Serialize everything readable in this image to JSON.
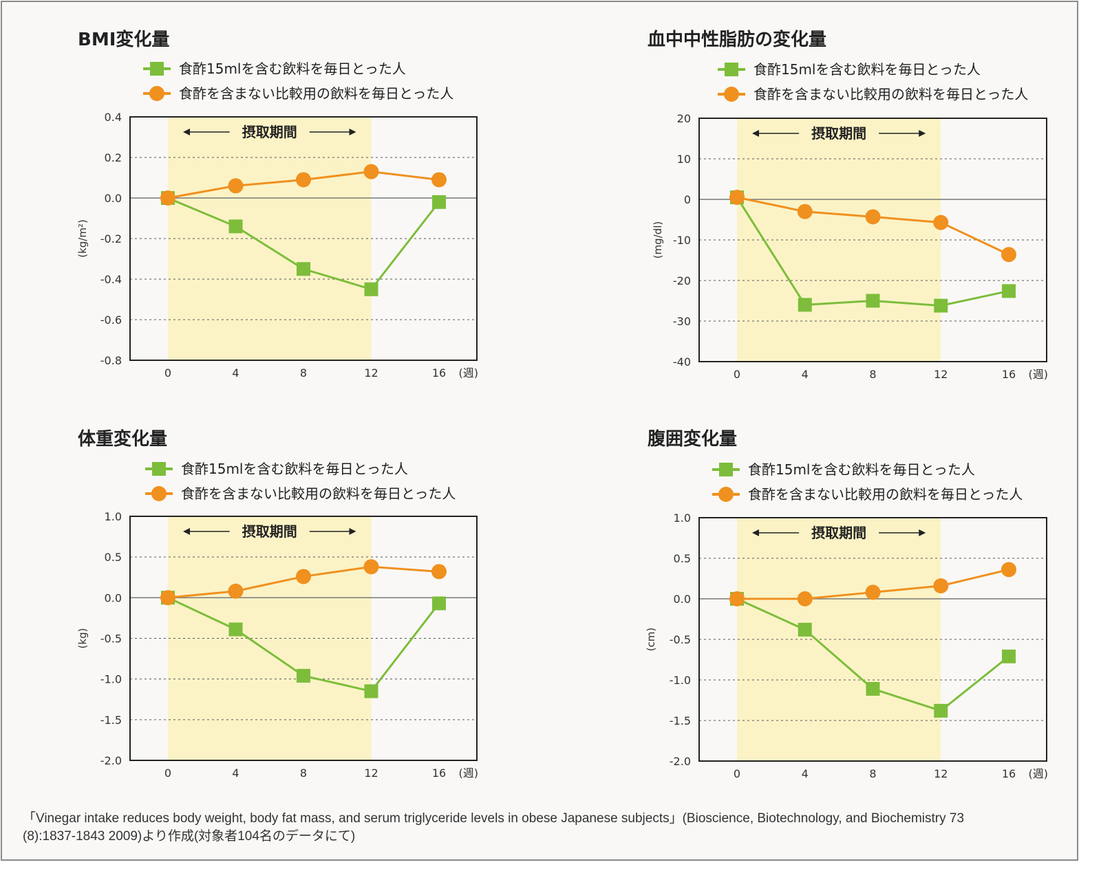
{
  "colors": {
    "green": "#7dbd3b",
    "orange": "#f0901e",
    "period_band": "#fbf3c6",
    "frame": "#222222",
    "gridline": "#555555"
  },
  "chart_data": [
    {
      "type": "line",
      "title": "BMI変化量",
      "ylabel": "(kg/m²)",
      "xlabel": "(週)",
      "x": [
        0,
        4,
        8,
        12,
        16
      ],
      "x_tick_labels": [
        "0",
        "4",
        "8",
        "12",
        "16"
      ],
      "ylim": [
        -0.8,
        0.4
      ],
      "y_ticks": [
        0.4,
        0.2,
        0.0,
        -0.2,
        -0.4,
        -0.6,
        -0.8
      ],
      "y_tick_labels": [
        "0.4",
        "0.2",
        "0.0",
        "-0.2",
        "-0.4",
        "-0.6",
        "-0.8"
      ],
      "intake_period": {
        "label": "摂取期間",
        "x_range": [
          0,
          12
        ]
      },
      "legend_position": "top",
      "grid": "dashed horizontal",
      "series": [
        {
          "name": "食酢15mlを含む飲料を毎日とった人",
          "marker": "square",
          "color": "#7dbd3b",
          "values": [
            0.0,
            -0.14,
            -0.35,
            -0.45,
            -0.02
          ]
        },
        {
          "name": "食酢を含まない比較用の飲料を毎日とった人",
          "marker": "circle",
          "color": "#f0901e",
          "values": [
            0.0,
            0.06,
            0.09,
            0.13,
            0.09
          ]
        }
      ]
    },
    {
      "type": "line",
      "title": "血中中性脂肪の変化量",
      "ylabel": "(mg/dl)",
      "xlabel": "(週)",
      "x": [
        0,
        4,
        8,
        12,
        16
      ],
      "x_tick_labels": [
        "0",
        "4",
        "8",
        "12",
        "16"
      ],
      "ylim": [
        -40,
        20
      ],
      "y_ticks": [
        20,
        10,
        0,
        -10,
        -20,
        -30,
        -40
      ],
      "y_tick_labels": [
        "20",
        "10",
        "0",
        "-10",
        "-20",
        "-30",
        "-40"
      ],
      "intake_period": {
        "label": "摂取期間",
        "x_range": [
          0,
          12
        ]
      },
      "legend_position": "top",
      "grid": "dashed horizontal",
      "series": [
        {
          "name": "食酢15mlを含む飲料を毎日とった人",
          "marker": "square",
          "color": "#7dbd3b",
          "values": [
            0.5,
            -26,
            -25,
            -26.2,
            -22.6
          ]
        },
        {
          "name": "食酢を含まない比較用の飲料を毎日とった人",
          "marker": "circle",
          "color": "#f0901e",
          "values": [
            0.5,
            -3,
            -4.3,
            -5.7,
            -13.6
          ]
        }
      ]
    },
    {
      "type": "line",
      "title": "体重変化量",
      "ylabel": "(kg)",
      "xlabel": "(週)",
      "x": [
        0,
        4,
        8,
        12,
        16
      ],
      "x_tick_labels": [
        "0",
        "4",
        "8",
        "12",
        "16"
      ],
      "ylim": [
        -2.0,
        1.0
      ],
      "y_ticks": [
        1.0,
        0.5,
        0.0,
        -0.5,
        -1.0,
        -1.5,
        -2.0
      ],
      "y_tick_labels": [
        "1.0",
        "0.5",
        "0.0",
        "-0.5",
        "-1.0",
        "-1.5",
        "-2.0"
      ],
      "intake_period": {
        "label": "摂取期間",
        "x_range": [
          0,
          12
        ]
      },
      "legend_position": "top",
      "grid": "dashed horizontal",
      "series": [
        {
          "name": "食酢15mlを含む飲料を毎日とった人",
          "marker": "square",
          "color": "#7dbd3b",
          "values": [
            0.0,
            -0.39,
            -0.96,
            -1.15,
            -0.07
          ]
        },
        {
          "name": "食酢を含まない比較用の飲料を毎日とった人",
          "marker": "circle",
          "color": "#f0901e",
          "values": [
            0.0,
            0.08,
            0.26,
            0.38,
            0.32
          ]
        }
      ]
    },
    {
      "type": "line",
      "title": "腹囲変化量",
      "ylabel": "(cm)",
      "xlabel": "(週)",
      "x": [
        0,
        4,
        8,
        12,
        16
      ],
      "x_tick_labels": [
        "0",
        "4",
        "8",
        "12",
        "16"
      ],
      "ylim": [
        -2.0,
        1.0
      ],
      "y_ticks": [
        1.0,
        0.5,
        0.0,
        -0.5,
        -1.0,
        -1.5,
        -2.0
      ],
      "y_tick_labels": [
        "1.0",
        "0.5",
        "0.0",
        "-0.5",
        "-1.0",
        "-1.5",
        "-2.0"
      ],
      "intake_period": {
        "label": "摂取期間",
        "x_range": [
          0,
          12
        ]
      },
      "legend_position": "top",
      "grid": "dashed horizontal",
      "series": [
        {
          "name": "食酢15mlを含む飲料を毎日とった人",
          "marker": "square",
          "color": "#7dbd3b",
          "values": [
            0.0,
            -0.38,
            -1.11,
            -1.38,
            -0.71
          ]
        },
        {
          "name": "食酢を含まない比較用の飲料を毎日とった人",
          "marker": "circle",
          "color": "#f0901e",
          "values": [
            0.0,
            0.0,
            0.08,
            0.16,
            0.36
          ]
        }
      ]
    }
  ],
  "citation": {
    "line1": "「Vinegar intake reduces body weight, body fat mass, and serum triglyceride levels in obese Japanese subjects」(Bioscience, Biotechnology, and Biochemistry 73",
    "line2": "(8):1837-1843 2009)より作成(対象者104名のデータにて)"
  }
}
